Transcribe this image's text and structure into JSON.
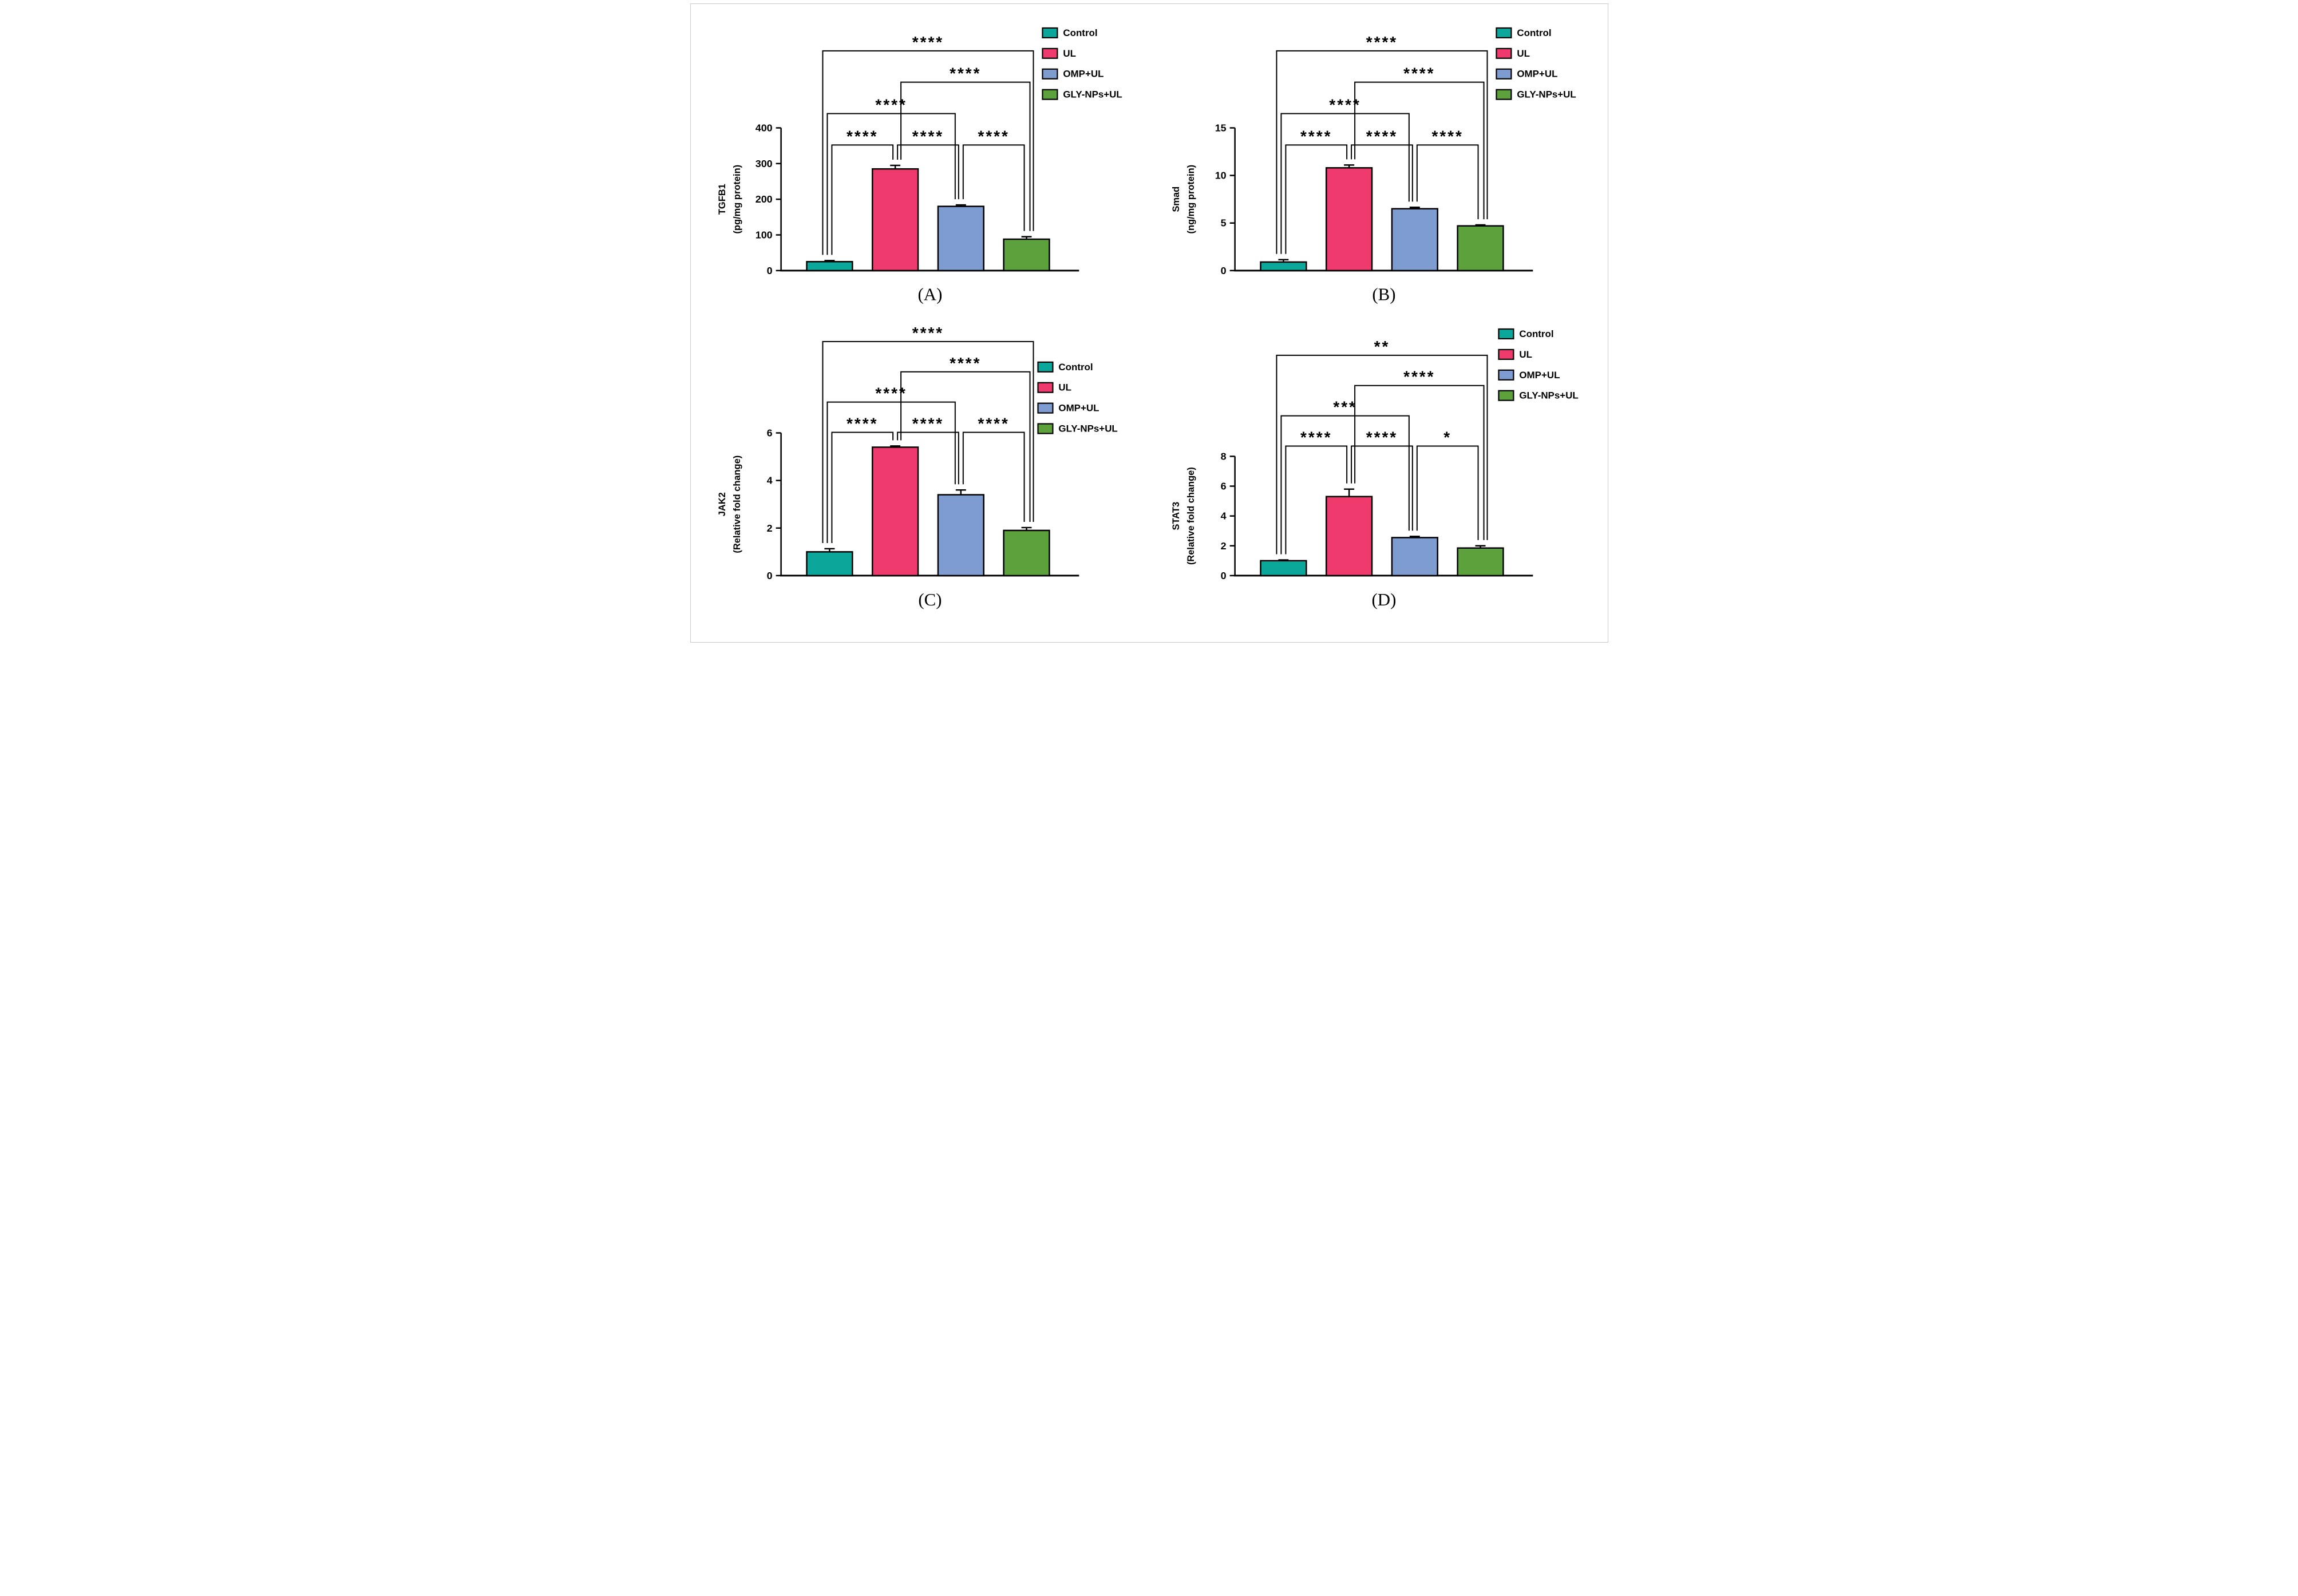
{
  "page_style": {
    "background": "#ffffff",
    "border_color": "#c9c9c9"
  },
  "groups": [
    {
      "label": "Control",
      "color": "#0ba79b"
    },
    {
      "label": "UL",
      "color": "#ee3a6c"
    },
    {
      "label": "OMP+UL",
      "color": "#7e9cd0"
    },
    {
      "label": "GLY-NPs+UL",
      "color": "#5ca13c"
    }
  ],
  "chart_data": [
    {
      "type": "bar",
      "panel_label": "(A)",
      "ylabel_lines": [
        "TGFB1",
        "(pg/mg protein)"
      ],
      "yticks": [
        0,
        100,
        200,
        300,
        400
      ],
      "ymax": 400,
      "grid": false,
      "legend_position": "top-right",
      "categories": [
        "Control",
        "UL",
        "OMP+UL",
        "GLY-NPs+UL"
      ],
      "values": [
        25,
        285,
        180,
        88
      ],
      "errors": [
        3,
        10,
        4,
        7
      ],
      "significance": [
        {
          "between": [
            "Control",
            "GLY-NPs+UL"
          ],
          "stars": "****",
          "row": 0
        },
        {
          "between": [
            "UL",
            "GLY-NPs+UL"
          ],
          "stars": "****",
          "row": 1
        },
        {
          "between": [
            "Control",
            "OMP+UL"
          ],
          "stars": "****",
          "row": 2
        },
        {
          "between": [
            "Control",
            "UL"
          ],
          "stars": "****",
          "row": 3
        },
        {
          "between": [
            "UL",
            "OMP+UL"
          ],
          "stars": "****",
          "row": 3
        },
        {
          "between": [
            "OMP+UL",
            "GLY-NPs+UL"
          ],
          "stars": "****",
          "row": 3
        }
      ],
      "legend": [
        "Control",
        "UL",
        "OMP+UL",
        "GLY-NPs+UL"
      ]
    },
    {
      "type": "bar",
      "panel_label": "(B)",
      "ylabel_lines": [
        "Smad",
        "(ng/mg protein)"
      ],
      "yticks": [
        0,
        5,
        10,
        15
      ],
      "ymax": 15,
      "grid": false,
      "legend_position": "top-right",
      "categories": [
        "Control",
        "UL",
        "OMP+UL",
        "GLY-NPs+UL"
      ],
      "values": [
        0.9,
        10.8,
        6.5,
        4.7
      ],
      "errors": [
        0.25,
        0.3,
        0.15,
        0.1
      ],
      "significance": [
        {
          "between": [
            "Control",
            "GLY-NPs+UL"
          ],
          "stars": "****",
          "row": 0
        },
        {
          "between": [
            "UL",
            "GLY-NPs+UL"
          ],
          "stars": "****",
          "row": 1
        },
        {
          "between": [
            "Control",
            "OMP+UL"
          ],
          "stars": "****",
          "row": 2
        },
        {
          "between": [
            "Control",
            "UL"
          ],
          "stars": "****",
          "row": 3
        },
        {
          "between": [
            "UL",
            "OMP+UL"
          ],
          "stars": "****",
          "row": 3
        },
        {
          "between": [
            "OMP+UL",
            "GLY-NPs+UL"
          ],
          "stars": "****",
          "row": 3
        }
      ],
      "legend": [
        "Control",
        "UL",
        "OMP+UL",
        "GLY-NPs+UL"
      ]
    },
    {
      "type": "bar",
      "panel_label": "(C)",
      "ylabel_lines": [
        "JAK2",
        "(Relative fold change)"
      ],
      "yticks": [
        0,
        2,
        4,
        6
      ],
      "ymax": 6,
      "grid": false,
      "legend_position": "middle-right",
      "categories": [
        "Control",
        "UL",
        "OMP+UL",
        "GLY-NPs+UL"
      ],
      "values": [
        1.0,
        5.4,
        3.4,
        1.9
      ],
      "errors": [
        0.13,
        0.05,
        0.2,
        0.12
      ],
      "significance": [
        {
          "between": [
            "Control",
            "GLY-NPs+UL"
          ],
          "stars": "****",
          "row": 0
        },
        {
          "between": [
            "UL",
            "GLY-NPs+UL"
          ],
          "stars": "****",
          "row": 1
        },
        {
          "between": [
            "Control",
            "OMP+UL"
          ],
          "stars": "****",
          "row": 2
        },
        {
          "between": [
            "Control",
            "UL"
          ],
          "stars": "****",
          "row": 3
        },
        {
          "between": [
            "UL",
            "OMP+UL"
          ],
          "stars": "****",
          "row": 3
        },
        {
          "between": [
            "OMP+UL",
            "GLY-NPs+UL"
          ],
          "stars": "****",
          "row": 3
        }
      ],
      "legend": [
        "Control",
        "UL",
        "OMP+UL",
        "GLY-NPs+UL"
      ]
    },
    {
      "type": "bar",
      "panel_label": "(D)",
      "ylabel_lines": [
        "STAT3",
        "(Relative fold change)"
      ],
      "yticks": [
        0,
        2,
        4,
        6,
        8
      ],
      "ymax": 8,
      "grid": false,
      "legend_position": "top-right",
      "categories": [
        "Control",
        "UL",
        "OMP+UL",
        "GLY-NPs+UL"
      ],
      "values": [
        1.0,
        5.3,
        2.55,
        1.85
      ],
      "errors": [
        0.05,
        0.5,
        0.08,
        0.15
      ],
      "significance": [
        {
          "between": [
            "Control",
            "GLY-NPs+UL"
          ],
          "stars": "**",
          "row": 0
        },
        {
          "between": [
            "UL",
            "GLY-NPs+UL"
          ],
          "stars": "****",
          "row": 1
        },
        {
          "between": [
            "Control",
            "OMP+UL"
          ],
          "stars": "***",
          "row": 2
        },
        {
          "between": [
            "Control",
            "UL"
          ],
          "stars": "****",
          "row": 3
        },
        {
          "between": [
            "UL",
            "OMP+UL"
          ],
          "stars": "****",
          "row": 3
        },
        {
          "between": [
            "OMP+UL",
            "GLY-NPs+UL"
          ],
          "stars": "*",
          "row": 3
        }
      ],
      "legend": [
        "Control",
        "UL",
        "OMP+UL",
        "GLY-NPs+UL"
      ]
    }
  ]
}
